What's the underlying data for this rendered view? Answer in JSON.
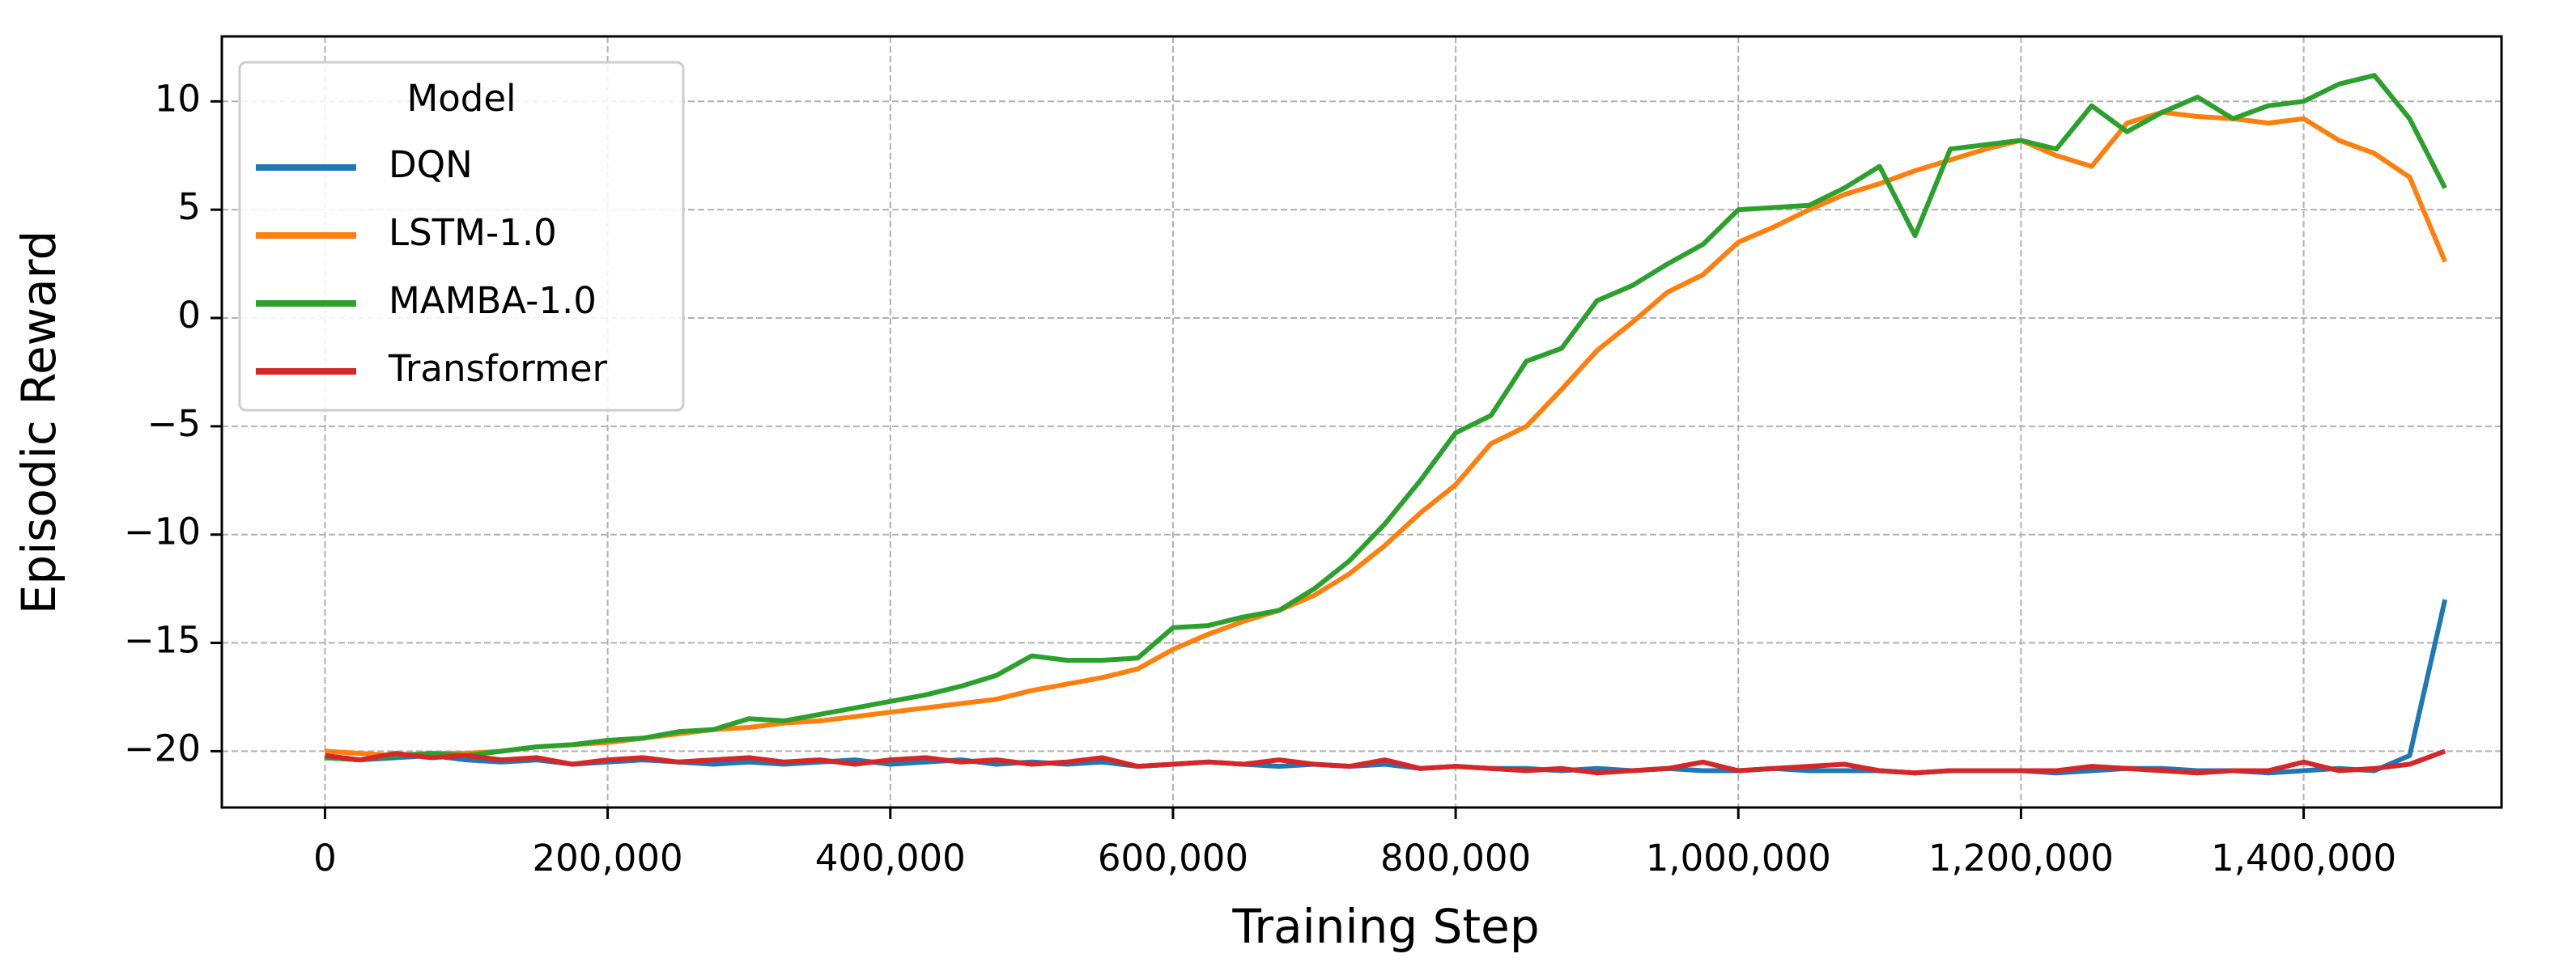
{
  "chart_data": {
    "type": "line",
    "xlabel": "Training Step",
    "ylabel": "Episodic Reward",
    "legend_title": "Model",
    "legend_position": "upper left",
    "grid": true,
    "xlim": [
      -73000,
      1540000
    ],
    "ylim": [
      -22.6,
      13.0
    ],
    "xticks": [
      0,
      {
        "value": 200000,
        "label": "200,000"
      },
      {
        "value": 400000,
        "label": "400,000"
      },
      {
        "value": 600000,
        "label": "600,000"
      },
      {
        "value": 800000,
        "label": "800,000"
      },
      {
        "value": 1000000,
        "label": "1,000,000"
      },
      {
        "value": 1200000,
        "label": "1,200,000"
      },
      {
        "value": 1400000,
        "label": "1,400,000"
      }
    ],
    "yticks": [
      {
        "value": -20,
        "label": "−20"
      },
      {
        "value": -15,
        "label": "−15"
      },
      {
        "value": -10,
        "label": "−10"
      },
      {
        "value": -5,
        "label": "−5"
      },
      0,
      5,
      10
    ],
    "x": [
      0,
      25000,
      50000,
      75000,
      100000,
      125000,
      150000,
      175000,
      200000,
      225000,
      250000,
      275000,
      300000,
      325000,
      350000,
      375000,
      400000,
      425000,
      450000,
      475000,
      500000,
      525000,
      550000,
      575000,
      600000,
      625000,
      650000,
      675000,
      700000,
      725000,
      750000,
      775000,
      800000,
      825000,
      850000,
      875000,
      900000,
      925000,
      950000,
      975000,
      1000000,
      1025000,
      1050000,
      1075000,
      1100000,
      1125000,
      1150000,
      1175000,
      1200000,
      1225000,
      1250000,
      1275000,
      1300000,
      1325000,
      1350000,
      1375000,
      1400000,
      1425000,
      1450000,
      1475000,
      1500000
    ],
    "series": [
      {
        "name": "DQN",
        "color": "#1f77b4",
        "values": [
          -20.3,
          -20.4,
          -20.3,
          -20.2,
          -20.4,
          -20.5,
          -20.4,
          -20.6,
          -20.5,
          -20.4,
          -20.5,
          -20.6,
          -20.5,
          -20.6,
          -20.5,
          -20.4,
          -20.6,
          -20.5,
          -20.4,
          -20.6,
          -20.5,
          -20.6,
          -20.5,
          -20.7,
          -20.6,
          -20.5,
          -20.6,
          -20.7,
          -20.6,
          -20.7,
          -20.6,
          -20.8,
          -20.7,
          -20.8,
          -20.8,
          -20.9,
          -20.8,
          -20.9,
          -20.8,
          -20.9,
          -20.9,
          -20.8,
          -20.9,
          -20.9,
          -20.9,
          -21.0,
          -20.9,
          -20.9,
          -20.9,
          -21.0,
          -20.9,
          -20.8,
          -20.8,
          -20.9,
          -20.9,
          -21.0,
          -20.9,
          -20.8,
          -20.9,
          -20.2,
          -13.0
        ]
      },
      {
        "name": "LSTM-1.0",
        "color": "#ff7f0e",
        "values": [
          -20.0,
          -20.1,
          -20.2,
          -20.1,
          -20.1,
          -20.0,
          -19.8,
          -19.7,
          -19.6,
          -19.4,
          -19.2,
          -19.0,
          -18.9,
          -18.7,
          -18.6,
          -18.4,
          -18.2,
          -18.0,
          -17.8,
          -17.6,
          -17.2,
          -16.9,
          -16.6,
          -16.2,
          -15.3,
          -14.6,
          -14.0,
          -13.5,
          -12.8,
          -11.8,
          -10.5,
          -9.0,
          -7.7,
          -5.8,
          -5.0,
          -3.3,
          -1.5,
          -0.2,
          1.2,
          2.0,
          3.5,
          4.2,
          5.0,
          5.7,
          6.2,
          6.8,
          7.3,
          7.8,
          8.2,
          7.5,
          7.0,
          9.0,
          9.5,
          9.3,
          9.2,
          9.0,
          9.2,
          8.2,
          7.6,
          6.5,
          2.6
        ]
      },
      {
        "name": "MAMBA-1.0",
        "color": "#2ca02c",
        "values": [
          -20.3,
          -20.4,
          -20.2,
          -20.1,
          -20.2,
          -20.0,
          -19.8,
          -19.7,
          -19.5,
          -19.4,
          -19.1,
          -19.0,
          -18.5,
          -18.6,
          -18.3,
          -18.0,
          -17.7,
          -17.4,
          -17.0,
          -16.5,
          -15.6,
          -15.8,
          -15.8,
          -15.7,
          -14.3,
          -14.2,
          -13.8,
          -13.5,
          -12.5,
          -11.2,
          -9.5,
          -7.5,
          -5.3,
          -4.5,
          -2.0,
          -1.4,
          0.8,
          1.5,
          2.5,
          3.4,
          5.0,
          5.1,
          5.2,
          6.0,
          7.0,
          3.8,
          7.8,
          8.0,
          8.2,
          7.8,
          9.8,
          8.6,
          9.5,
          10.2,
          9.2,
          9.8,
          10.0,
          10.8,
          11.2,
          9.2,
          6.0
        ]
      },
      {
        "name": "Transformer",
        "color": "#d62728",
        "values": [
          -20.2,
          -20.4,
          -20.1,
          -20.3,
          -20.2,
          -20.4,
          -20.3,
          -20.6,
          -20.4,
          -20.3,
          -20.5,
          -20.4,
          -20.3,
          -20.5,
          -20.4,
          -20.6,
          -20.4,
          -20.3,
          -20.5,
          -20.4,
          -20.6,
          -20.5,
          -20.3,
          -20.7,
          -20.6,
          -20.5,
          -20.6,
          -20.4,
          -20.6,
          -20.7,
          -20.4,
          -20.8,
          -20.7,
          -20.8,
          -20.9,
          -20.8,
          -21.0,
          -20.9,
          -20.8,
          -20.5,
          -20.9,
          -20.8,
          -20.7,
          -20.6,
          -20.9,
          -21.0,
          -20.9,
          -20.9,
          -20.9,
          -20.9,
          -20.7,
          -20.8,
          -20.9,
          -21.0,
          -20.9,
          -20.9,
          -20.5,
          -20.9,
          -20.8,
          -20.6,
          -20.0
        ]
      }
    ]
  }
}
